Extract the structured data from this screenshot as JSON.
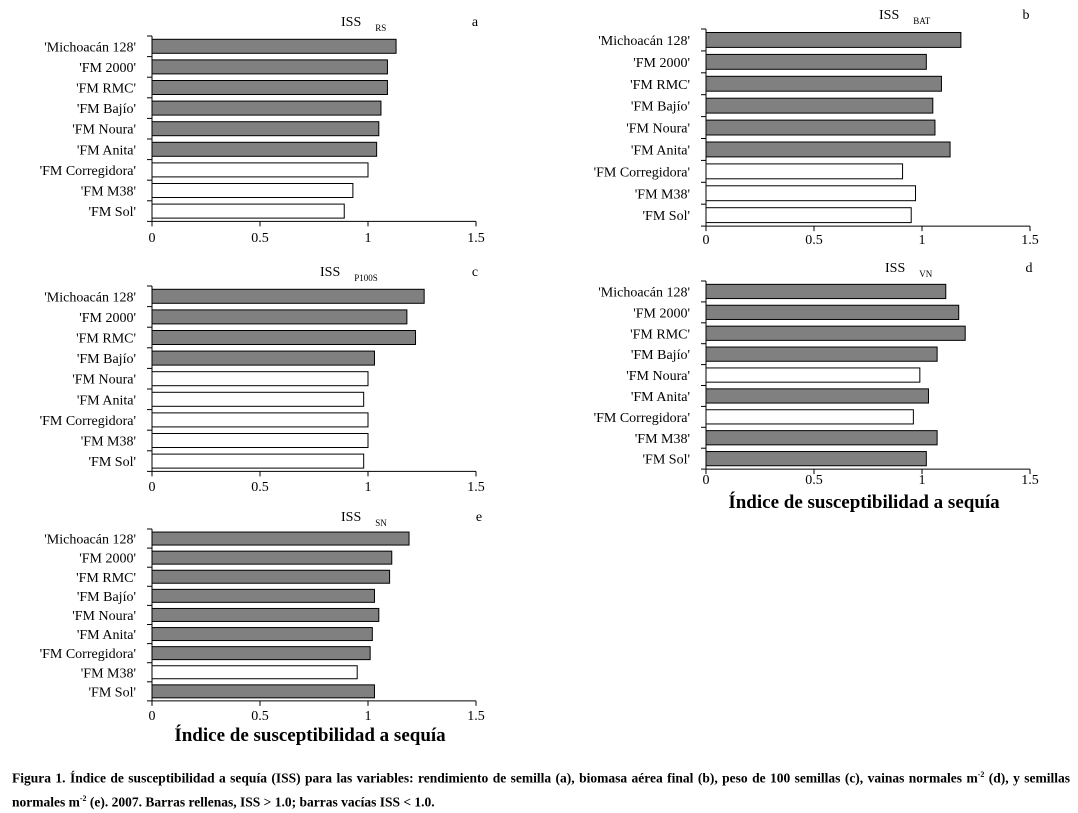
{
  "chart_data": [
    {
      "type": "bar",
      "orientation": "horizontal",
      "panel": "a",
      "title": "ISS",
      "title_subscript": "RS",
      "categories": [
        "'Michoacán 128'",
        "'FM 2000'",
        "'FM RMC'",
        "'FM Bajío'",
        "'FM Noura'",
        "'FM Anita'",
        "'FM Corregidora'",
        "'FM M38'",
        "'FM Sol'"
      ],
      "values": [
        1.13,
        1.09,
        1.09,
        1.06,
        1.05,
        1.04,
        1.0,
        0.93,
        0.89
      ],
      "xlim": [
        0,
        1.5
      ],
      "xticks": [
        "0",
        "0.5",
        "1",
        "1.5"
      ],
      "xlabel": ""
    },
    {
      "type": "bar",
      "orientation": "horizontal",
      "panel": "b",
      "title": "ISS",
      "title_subscript": "BAT",
      "categories": [
        "'Michoacán 128'",
        "'FM 2000'",
        "'FM RMC'",
        "'FM Bajío'",
        "'FM Noura'",
        "'FM Anita'",
        "'FM Corregidora'",
        "'FM M38'",
        "'FM Sol'"
      ],
      "values": [
        1.18,
        1.02,
        1.09,
        1.05,
        1.06,
        1.13,
        0.91,
        0.97,
        0.95
      ],
      "xlim": [
        0,
        1.5
      ],
      "xticks": [
        "0",
        "0.5",
        "1",
        "1.5"
      ],
      "xlabel": ""
    },
    {
      "type": "bar",
      "orientation": "horizontal",
      "panel": "c",
      "title": "ISS",
      "title_subscript": "P100S",
      "categories": [
        "'Michoacán 128'",
        "'FM 2000'",
        "'FM RMC'",
        "'FM Bajío'",
        "'FM Noura'",
        "'FM Anita'",
        "'FM Corregidora'",
        "'FM M38'",
        "'FM Sol'"
      ],
      "values": [
        1.26,
        1.18,
        1.22,
        1.03,
        1.0,
        0.98,
        1.0,
        1.0,
        0.98
      ],
      "xlim": [
        0,
        1.5
      ],
      "xticks": [
        "0",
        "0.5",
        "1",
        "1.5"
      ],
      "xlabel": ""
    },
    {
      "type": "bar",
      "orientation": "horizontal",
      "panel": "d",
      "title": "ISS",
      "title_subscript": "VN",
      "categories": [
        "'Michoacán 128'",
        "'FM 2000'",
        "'FM RMC'",
        "'FM Bajío'",
        "'FM Noura'",
        "'FM Anita'",
        "'FM Corregidora'",
        "'FM M38'",
        "'FM Sol'"
      ],
      "values": [
        1.11,
        1.17,
        1.2,
        1.07,
        0.99,
        1.03,
        0.96,
        1.07,
        1.02
      ],
      "xlim": [
        0,
        1.5
      ],
      "xticks": [
        "0",
        "0.5",
        "1",
        "1.5"
      ],
      "xlabel": "Índice de susceptibilidad a sequía"
    },
    {
      "type": "bar",
      "orientation": "horizontal",
      "panel": "e",
      "title": "ISS",
      "title_subscript": "SN",
      "categories": [
        "'Michoacán 128'",
        "'FM 2000'",
        "'FM RMC'",
        "'FM Bajío'",
        "'FM Noura'",
        "'FM Anita'",
        "'FM Corregidora'",
        "'FM M38'",
        "'FM Sol'"
      ],
      "values": [
        1.19,
        1.11,
        1.1,
        1.03,
        1.05,
        1.02,
        1.01,
        0.95,
        1.03
      ],
      "xlim": [
        0,
        1.5
      ],
      "xticks": [
        "0",
        "0.5",
        "1",
        "1.5"
      ],
      "xlabel": "Índice de susceptibilidad a sequía"
    }
  ],
  "style": {
    "filled_color": "#808080",
    "empty_color": "#ffffff",
    "stroke_color": "#000000",
    "threshold": 1.0
  },
  "caption": {
    "text_1": "Figura 1. Índice de susceptibilidad a sequía (ISS) para las variables: rendimiento de semilla (a), biomasa aérea final (b), peso de 100 semillas (c), vainas normales m",
    "sup_1": "-2",
    "text_2": " (d), y semillas normales m",
    "sup_2": "-2",
    "text_3": " (e). 2007.  Barras rellenas, ISS > 1.0; barras vacías ISS < 1.0."
  }
}
